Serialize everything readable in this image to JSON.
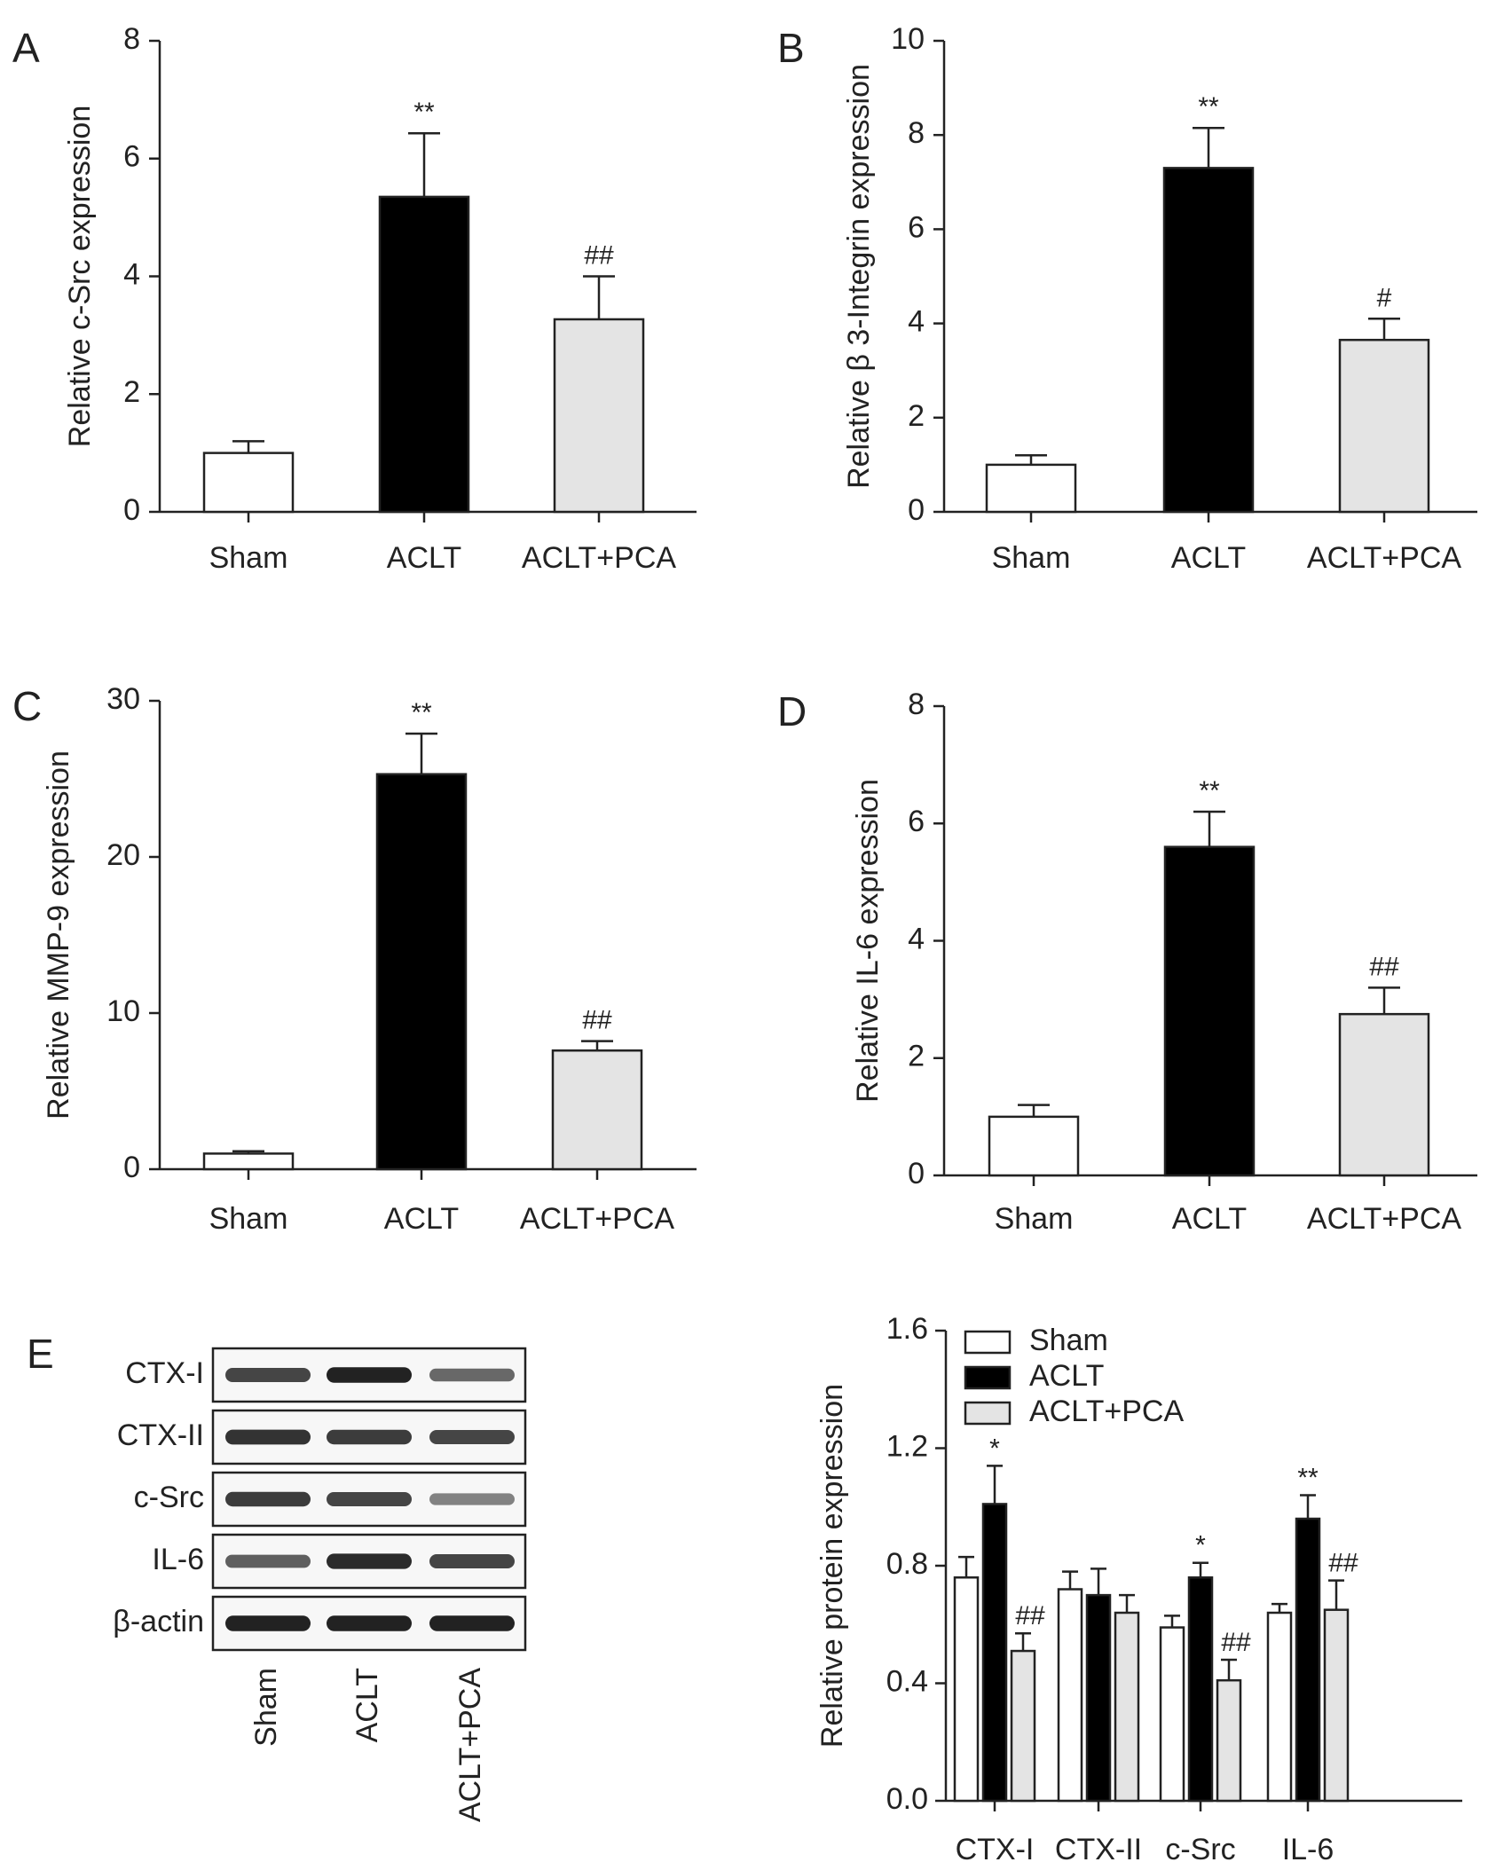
{
  "chart_data": [
    {
      "panel": "A",
      "type": "bar",
      "categories": [
        "Sham",
        "ACLT",
        "ACLT+PCA"
      ],
      "values": [
        1.0,
        5.35,
        3.27
      ],
      "errors": [
        0.2,
        1.08,
        0.73
      ],
      "annotations": [
        "",
        "**",
        "##"
      ],
      "ylabel": "Relative c-Src expression",
      "ylim": [
        0,
        8
      ],
      "yticks": [
        0,
        2,
        4,
        6,
        8
      ],
      "colors": [
        "#ffffff",
        "#000000",
        "#e4e4e4"
      ]
    },
    {
      "panel": "B",
      "type": "bar",
      "categories": [
        "Sham",
        "ACLT",
        "ACLT+PCA"
      ],
      "values": [
        1.0,
        7.3,
        3.65
      ],
      "errors": [
        0.2,
        0.85,
        0.45
      ],
      "annotations": [
        "",
        "**",
        "#"
      ],
      "ylabel": "Relative β 3-Integrin expression",
      "ylim": [
        0,
        10
      ],
      "yticks": [
        0,
        2,
        4,
        6,
        8,
        10
      ],
      "colors": [
        "#ffffff",
        "#000000",
        "#e4e4e4"
      ]
    },
    {
      "panel": "C",
      "type": "bar",
      "categories": [
        "Sham",
        "ACLT",
        "ACLT+PCA"
      ],
      "values": [
        1.0,
        25.3,
        7.6
      ],
      "errors": [
        0.15,
        2.6,
        0.6
      ],
      "annotations": [
        "",
        "**",
        "##"
      ],
      "ylabel": "Relative MMP-9 expression",
      "ylim": [
        0,
        30
      ],
      "yticks": [
        0,
        10,
        20,
        30
      ],
      "colors": [
        "#ffffff",
        "#000000",
        "#e4e4e4"
      ]
    },
    {
      "panel": "D",
      "type": "bar",
      "categories": [
        "Sham",
        "ACLT",
        "ACLT+PCA"
      ],
      "values": [
        1.0,
        5.6,
        2.75
      ],
      "errors": [
        0.2,
        0.6,
        0.45
      ],
      "annotations": [
        "",
        "**",
        "##"
      ],
      "ylabel": "Relative IL-6 expression",
      "ylim": [
        0,
        8
      ],
      "yticks": [
        0,
        2,
        4,
        6,
        8
      ],
      "colors": [
        "#ffffff",
        "#000000",
        "#e4e4e4"
      ]
    },
    {
      "panel": "E",
      "type": "bar",
      "categories": [
        "CTX-I",
        "CTX-II",
        "c-Src",
        "IL-6"
      ],
      "series": [
        {
          "name": "Sham",
          "color": "#ffffff",
          "values": [
            0.76,
            0.72,
            0.59,
            0.64
          ],
          "errors": [
            0.07,
            0.06,
            0.04,
            0.03
          ],
          "annotations": [
            "",
            "",
            "",
            ""
          ]
        },
        {
          "name": "ACLT",
          "color": "#000000",
          "values": [
            1.01,
            0.7,
            0.76,
            0.96
          ],
          "errors": [
            0.13,
            0.09,
            0.05,
            0.08
          ],
          "annotations": [
            "*",
            "",
            "*",
            "**"
          ]
        },
        {
          "name": "ACLT+PCA",
          "color": "#e4e4e4",
          "values": [
            0.51,
            0.64,
            0.41,
            0.65
          ],
          "errors": [
            0.06,
            0.06,
            0.07,
            0.1
          ],
          "annotations": [
            "##",
            "",
            "##",
            "##"
          ]
        }
      ],
      "ylabel": "Relative protein expression",
      "ylim": [
        0,
        1.6
      ],
      "yticks": [
        "0.0",
        "0.4",
        "0.8",
        "1.2",
        "1.6"
      ],
      "legend": "top-left"
    }
  ],
  "blot": {
    "panel": "E",
    "rows": [
      "CTX-I",
      "CTX-II",
      "c-Src",
      "IL-6",
      "β-actin"
    ],
    "lanes": [
      "Sham",
      "ACLT",
      "ACLT+PCA"
    ],
    "band_intensity": [
      [
        0.75,
        0.95,
        0.55
      ],
      [
        0.85,
        0.8,
        0.75
      ],
      [
        0.8,
        0.75,
        0.4
      ],
      [
        0.6,
        0.9,
        0.75
      ],
      [
        0.95,
        0.95,
        0.95
      ]
    ]
  }
}
